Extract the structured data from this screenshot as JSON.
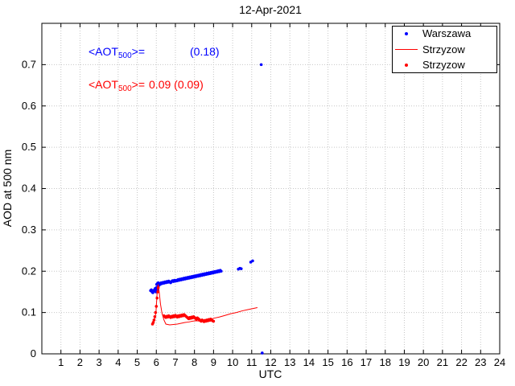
{
  "chart_data": {
    "type": "scatter",
    "title": "12-Apr-2021",
    "xlabel": "UTC",
    "ylabel": "AOD at 500 nm",
    "xlim": [
      0,
      24
    ],
    "ylim": [
      0,
      0.8
    ],
    "xticks": [
      1,
      2,
      3,
      4,
      5,
      6,
      7,
      8,
      9,
      10,
      11,
      12,
      13,
      14,
      15,
      16,
      17,
      18,
      19,
      20,
      21,
      22,
      23,
      24
    ],
    "yticks": [
      0,
      0.1,
      0.2,
      0.3,
      0.4,
      0.5,
      0.6,
      0.7
    ],
    "grid": true,
    "legend_position": "upper-right",
    "series": [
      {
        "name": "Warszawa",
        "type": "scatter",
        "color": "#0000ff",
        "points": [
          [
            5.7,
            0.153
          ],
          [
            5.74,
            0.155
          ],
          [
            5.78,
            0.15
          ],
          [
            5.82,
            0.148
          ],
          [
            5.86,
            0.152
          ],
          [
            5.9,
            0.155
          ],
          [
            5.94,
            0.158
          ],
          [
            5.98,
            0.15
          ],
          [
            6.0,
            0.16
          ],
          [
            6.02,
            0.168
          ],
          [
            6.04,
            0.155
          ],
          [
            6.06,
            0.17
          ],
          [
            6.08,
            0.162
          ],
          [
            6.1,
            0.172
          ],
          [
            6.12,
            0.165
          ],
          [
            6.15,
            0.17
          ],
          [
            6.2,
            0.168
          ],
          [
            6.25,
            0.172
          ],
          [
            6.3,
            0.17
          ],
          [
            6.35,
            0.173
          ],
          [
            6.4,
            0.171
          ],
          [
            6.45,
            0.174
          ],
          [
            6.5,
            0.172
          ],
          [
            6.55,
            0.175
          ],
          [
            6.6,
            0.173
          ],
          [
            6.65,
            0.176
          ],
          [
            6.7,
            0.174
          ],
          [
            6.75,
            0.172
          ],
          [
            6.8,
            0.175
          ],
          [
            6.85,
            0.177
          ],
          [
            6.9,
            0.175
          ],
          [
            6.95,
            0.178
          ],
          [
            7.0,
            0.176
          ],
          [
            7.05,
            0.178
          ],
          [
            7.1,
            0.177
          ],
          [
            7.15,
            0.18
          ],
          [
            7.2,
            0.178
          ],
          [
            7.25,
            0.181
          ],
          [
            7.3,
            0.179
          ],
          [
            7.35,
            0.182
          ],
          [
            7.4,
            0.18
          ],
          [
            7.45,
            0.183
          ],
          [
            7.5,
            0.181
          ],
          [
            7.55,
            0.184
          ],
          [
            7.6,
            0.182
          ],
          [
            7.65,
            0.185
          ],
          [
            7.7,
            0.183
          ],
          [
            7.75,
            0.186
          ],
          [
            7.8,
            0.184
          ],
          [
            7.85,
            0.187
          ],
          [
            7.9,
            0.185
          ],
          [
            7.95,
            0.188
          ],
          [
            8.0,
            0.186
          ],
          [
            8.05,
            0.189
          ],
          [
            8.1,
            0.187
          ],
          [
            8.15,
            0.19
          ],
          [
            8.2,
            0.188
          ],
          [
            8.25,
            0.191
          ],
          [
            8.3,
            0.189
          ],
          [
            8.35,
            0.192
          ],
          [
            8.4,
            0.19
          ],
          [
            8.45,
            0.193
          ],
          [
            8.5,
            0.191
          ],
          [
            8.55,
            0.194
          ],
          [
            8.6,
            0.192
          ],
          [
            8.65,
            0.195
          ],
          [
            8.7,
            0.193
          ],
          [
            8.75,
            0.196
          ],
          [
            8.8,
            0.194
          ],
          [
            8.85,
            0.197
          ],
          [
            8.9,
            0.195
          ],
          [
            8.95,
            0.198
          ],
          [
            9.0,
            0.196
          ],
          [
            9.05,
            0.199
          ],
          [
            9.1,
            0.197
          ],
          [
            9.15,
            0.2
          ],
          [
            9.2,
            0.198
          ],
          [
            9.25,
            0.201
          ],
          [
            9.3,
            0.199
          ],
          [
            9.35,
            0.202
          ],
          [
            9.4,
            0.2
          ],
          [
            10.3,
            0.205
          ],
          [
            10.38,
            0.207
          ],
          [
            10.45,
            0.206
          ],
          [
            10.95,
            0.222
          ],
          [
            11.05,
            0.225
          ],
          [
            11.5,
            0.7
          ],
          [
            11.55,
            0.002
          ]
        ]
      },
      {
        "name": "Strzyzow",
        "type": "line",
        "color": "#ff0000",
        "points": [
          [
            5.85,
            0.078
          ],
          [
            5.92,
            0.085
          ],
          [
            5.98,
            0.1
          ],
          [
            6.02,
            0.13
          ],
          [
            6.06,
            0.16
          ],
          [
            6.1,
            0.168
          ],
          [
            6.15,
            0.15
          ],
          [
            6.22,
            0.12
          ],
          [
            6.3,
            0.098
          ],
          [
            6.4,
            0.082
          ],
          [
            6.5,
            0.072
          ],
          [
            6.7,
            0.07
          ],
          [
            6.9,
            0.071
          ],
          [
            7.1,
            0.072
          ],
          [
            7.3,
            0.074
          ],
          [
            7.5,
            0.076
          ],
          [
            7.7,
            0.077
          ],
          [
            7.9,
            0.079
          ],
          [
            8.1,
            0.08
          ],
          [
            8.3,
            0.079
          ],
          [
            8.5,
            0.08
          ],
          [
            8.7,
            0.082
          ],
          [
            8.9,
            0.084
          ],
          [
            9.0,
            0.086
          ],
          [
            9.3,
            0.089
          ],
          [
            9.6,
            0.093
          ],
          [
            9.9,
            0.097
          ],
          [
            10.2,
            0.1
          ],
          [
            10.5,
            0.104
          ],
          [
            10.8,
            0.107
          ],
          [
            11.1,
            0.11
          ],
          [
            11.3,
            0.112
          ]
        ]
      },
      {
        "name": "Strzyzow",
        "type": "scatter",
        "color": "#ff0000",
        "points": [
          [
            5.8,
            0.072
          ],
          [
            5.84,
            0.076
          ],
          [
            5.88,
            0.082
          ],
          [
            5.92,
            0.09
          ],
          [
            5.96,
            0.1
          ],
          [
            6.0,
            0.115
          ],
          [
            6.04,
            0.135
          ],
          [
            6.08,
            0.15
          ],
          [
            6.1,
            0.16
          ],
          [
            6.4,
            0.092
          ],
          [
            6.45,
            0.09
          ],
          [
            6.5,
            0.088
          ],
          [
            6.55,
            0.091
          ],
          [
            6.6,
            0.089
          ],
          [
            6.65,
            0.092
          ],
          [
            6.7,
            0.09
          ],
          [
            6.75,
            0.088
          ],
          [
            6.8,
            0.091
          ],
          [
            6.85,
            0.089
          ],
          [
            6.9,
            0.092
          ],
          [
            6.95,
            0.09
          ],
          [
            7.0,
            0.093
          ],
          [
            7.05,
            0.091
          ],
          [
            7.1,
            0.089
          ],
          [
            7.15,
            0.092
          ],
          [
            7.2,
            0.09
          ],
          [
            7.25,
            0.093
          ],
          [
            7.3,
            0.091
          ],
          [
            7.35,
            0.094
          ],
          [
            7.4,
            0.092
          ],
          [
            7.45,
            0.095
          ],
          [
            7.5,
            0.093
          ],
          [
            7.55,
            0.091
          ],
          [
            7.6,
            0.089
          ],
          [
            7.65,
            0.087
          ],
          [
            7.7,
            0.085
          ],
          [
            7.75,
            0.088
          ],
          [
            7.8,
            0.086
          ],
          [
            7.85,
            0.089
          ],
          [
            7.9,
            0.087
          ],
          [
            7.95,
            0.09
          ],
          [
            8.0,
            0.088
          ],
          [
            8.05,
            0.086
          ],
          [
            8.1,
            0.084
          ],
          [
            8.15,
            0.087
          ],
          [
            8.2,
            0.085
          ],
          [
            8.25,
            0.083
          ],
          [
            8.3,
            0.081
          ],
          [
            8.35,
            0.079
          ],
          [
            8.4,
            0.082
          ],
          [
            8.45,
            0.08
          ],
          [
            8.5,
            0.078
          ],
          [
            8.55,
            0.081
          ],
          [
            8.6,
            0.079
          ],
          [
            8.65,
            0.082
          ],
          [
            8.7,
            0.08
          ],
          [
            8.75,
            0.083
          ],
          [
            8.8,
            0.081
          ],
          [
            8.85,
            0.084
          ],
          [
            8.9,
            0.082
          ],
          [
            8.95,
            0.08
          ],
          [
            9.0,
            0.079
          ]
        ]
      }
    ]
  },
  "annotations": {
    "warszawa": {
      "prefix": "<AOT",
      "sub": "500",
      "suffix": ">=",
      "value": "(0.18)",
      "color": "#0000ff"
    },
    "strzyzow": {
      "prefix": "<AOT",
      "sub": "500",
      "suffix": ">=",
      "value": "0.09 (0.09)",
      "color": "#ff0000"
    }
  }
}
